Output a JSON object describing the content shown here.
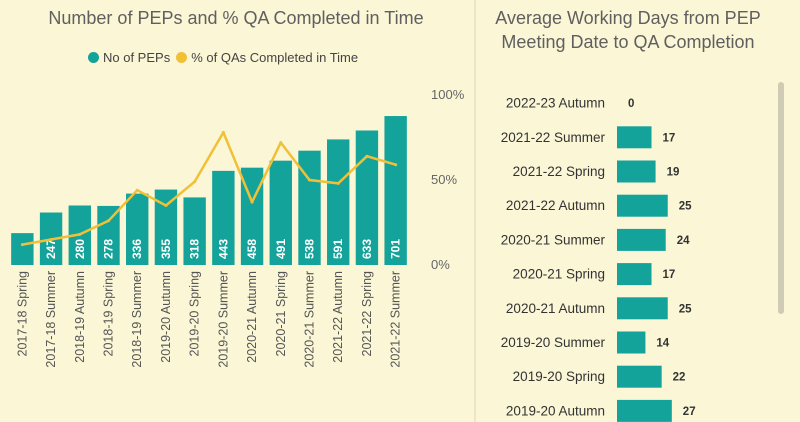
{
  "left": {
    "title": "Number of PEPs and % QA Completed in Time",
    "legend": [
      {
        "label": "No of PEPs",
        "color": "#14a39a"
      },
      {
        "label": "% of QAs Completed in Time",
        "color": "#f2c037"
      }
    ]
  },
  "right": {
    "title_line1": "Average Working Days from PEP",
    "title_line2": "Meeting Date to QA Completion"
  },
  "colors": {
    "bar": "#14a39a",
    "line": "#f2c037",
    "background": "#faf6d6"
  },
  "chart_data": [
    {
      "type": "bar",
      "title": "Number of PEPs and % QA Completed in Time",
      "categories": [
        "2017-18 Spring",
        "2017-18 Summer",
        "2018-19 Autumn",
        "2018-19 Spring",
        "2018-19 Summer",
        "2019-20 Autumn",
        "2019-20 Spring",
        "2019-20 Summer",
        "2020-21 Autumn",
        "2020-21 Spring",
        "2020-21 Summer",
        "2021-22 Autumn",
        "2021-22 Spring",
        "2021-22 Summer"
      ],
      "series": [
        {
          "name": "No of PEPs",
          "type": "bar",
          "values": [
            150,
            247,
            280,
            278,
            336,
            355,
            318,
            443,
            458,
            491,
            538,
            591,
            633,
            701
          ],
          "labels": [
            "",
            "247",
            "280",
            "278",
            "336",
            "355",
            "318",
            "443",
            "458",
            "491",
            "538",
            "591",
            "633",
            "701"
          ]
        },
        {
          "name": "% of QAs Completed in Time",
          "type": "line",
          "axis": "right",
          "values": [
            12,
            15,
            18,
            26,
            44,
            35,
            49,
            78,
            37,
            72,
            50,
            48,
            64,
            59
          ]
        }
      ],
      "ylim": [
        0,
        800
      ],
      "y2lim": [
        0,
        100
      ],
      "y2_ticks": [
        "0%",
        "50%",
        "100%"
      ],
      "legend": "top"
    },
    {
      "type": "bar",
      "orientation": "horizontal",
      "title": "Average Working Days from PEP Meeting Date to QA Completion",
      "categories": [
        "2022-23 Autumn",
        "2021-22 Summer",
        "2021-22 Spring",
        "2021-22 Autumn",
        "2020-21 Summer",
        "2020-21 Spring",
        "2020-21 Autumn",
        "2019-20 Summer",
        "2019-20 Spring",
        "2019-20 Autumn"
      ],
      "values": [
        0,
        17,
        19,
        25,
        24,
        17,
        25,
        14,
        22,
        27
      ],
      "xlim": [
        0,
        40
      ]
    }
  ]
}
